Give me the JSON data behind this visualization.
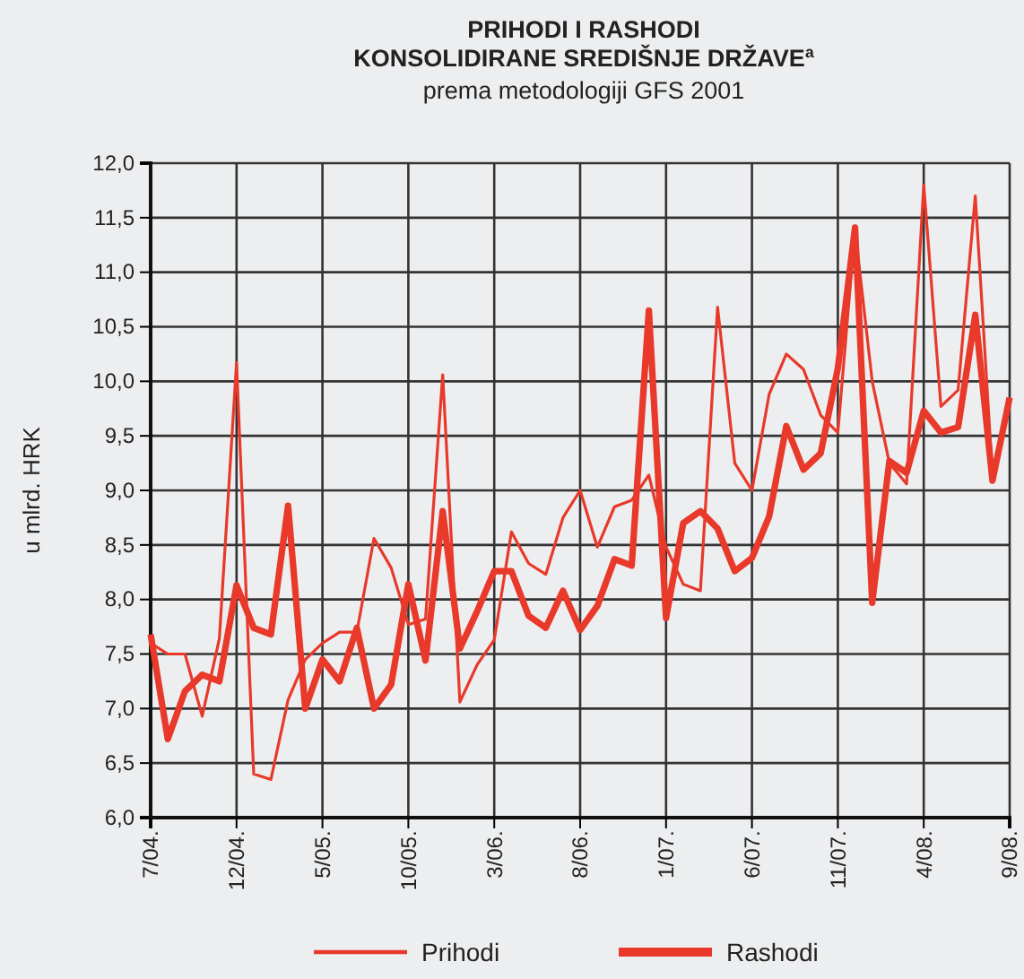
{
  "chart_data": {
    "type": "line",
    "title": "PRIHODI I RASHODI\nKONSOLIDIRANE SREDIŠNJE DRŽAVE$^{a}$",
    "subtitle": "prema metodologiji GFS 2001",
    "ylabel": "u mlrd. HRK",
    "categories": [
      "7/04.",
      null,
      null,
      null,
      null,
      "12/04.",
      null,
      null,
      null,
      null,
      "5/05.",
      null,
      null,
      null,
      null,
      "10/05.",
      null,
      null,
      null,
      null,
      "3/06.",
      null,
      null,
      null,
      null,
      "8/06.",
      null,
      null,
      null,
      null,
      "1/07.",
      null,
      null,
      null,
      null,
      "6/07.",
      null,
      null,
      null,
      null,
      "11/07.",
      null,
      null,
      null,
      null,
      "4/08.",
      null,
      null,
      null,
      null,
      "9/08."
    ],
    "series": [
      {
        "name": "Prihodi",
        "color": "#e8392a",
        "values": [
          7.6,
          7.5,
          7.5,
          6.93,
          7.64,
          10.17,
          6.4,
          6.35,
          7.08,
          7.45,
          7.6,
          7.7,
          7.7,
          8.56,
          8.29,
          7.77,
          7.82,
          10.06,
          7.06,
          7.4,
          7.63,
          8.62,
          8.33,
          8.23,
          8.75,
          9.0,
          8.48,
          8.85,
          8.91,
          9.14,
          8.48,
          8.14,
          8.08,
          10.68,
          9.25,
          9.0,
          9.88,
          10.25,
          10.11,
          9.69,
          9.53,
          11.39,
          10.0,
          9.25,
          9.06,
          11.8,
          9.77,
          9.92,
          11.7,
          9.14,
          9.85
        ]
      },
      {
        "name": "Rashodi",
        "color": "#e8392a",
        "values": [
          7.68,
          6.72,
          7.16,
          7.31,
          7.25,
          8.13,
          7.74,
          7.68,
          8.86,
          7.0,
          7.45,
          7.25,
          7.74,
          7.0,
          7.22,
          8.14,
          7.44,
          8.81,
          7.55,
          7.89,
          8.26,
          8.26,
          7.85,
          7.74,
          8.08,
          7.72,
          7.94,
          8.37,
          8.31,
          10.65,
          7.83,
          8.7,
          8.81,
          8.65,
          8.26,
          8.38,
          8.76,
          9.59,
          9.19,
          9.34,
          10.12,
          11.41,
          7.97,
          9.27,
          9.16,
          9.73,
          9.53,
          9.58,
          10.61,
          9.09,
          9.85
        ]
      }
    ],
    "ylim": [
      6,
      12
    ],
    "yticks": [
      {
        "value": 6,
        "label": "6,0"
      },
      {
        "value": 6.5,
        "label": "6,5"
      },
      {
        "value": 7,
        "label": "7,0"
      },
      {
        "value": 7.5,
        "label": "7,5"
      },
      {
        "value": 8,
        "label": "8,0"
      },
      {
        "value": 8.5,
        "label": "8,5"
      },
      {
        "value": 9,
        "label": "9,0"
      },
      {
        "value": 9.5,
        "label": "9,5"
      },
      {
        "value": 10,
        "label": "10,0"
      },
      {
        "value": 10.5,
        "label": "10,5"
      },
      {
        "value": 11,
        "label": "11,0"
      },
      {
        "value": 11.5,
        "label": "11,5"
      },
      {
        "value": 12,
        "label": "12,0"
      }
    ],
    "grid": true,
    "legend": "bottom",
    "marker": "none",
    "line_style": "solid"
  }
}
